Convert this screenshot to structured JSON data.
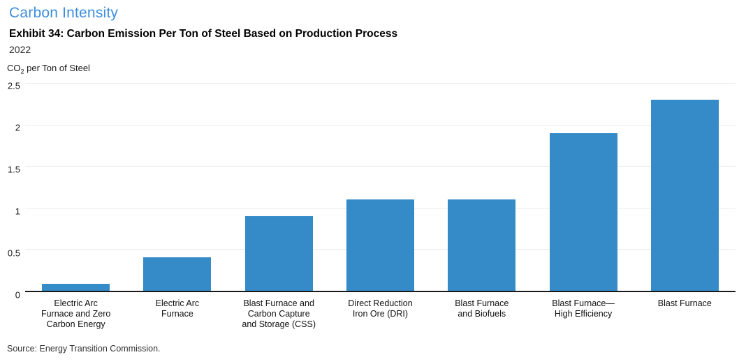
{
  "header": {
    "section_title": "Carbon Intensity",
    "exhibit_title": "Exhibit 34: Carbon Emission Per Ton of Steel Based on Production Process",
    "subtitle": "2022"
  },
  "y_axis_title": {
    "prefix": "CO",
    "sub": "2",
    "rest": " per Ton of Steel"
  },
  "footer": {
    "source": "Source: Energy Transition Commission."
  },
  "colors": {
    "section_title_blue": "#3e8ede",
    "bar_blue": "#348bc8",
    "gridline": "#ebebeb",
    "axis_line": "#1a1a1a"
  },
  "chart_data": {
    "type": "bar",
    "title": "Exhibit 34: Carbon Emission Per Ton of Steel Based on Production Process",
    "subtitle": "2022",
    "xlabel": "",
    "ylabel": "CO₂ per Ton of Steel",
    "ylim": [
      0,
      2.5
    ],
    "yticks": [
      0,
      0.5,
      1,
      1.5,
      2,
      2.5
    ],
    "grid": true,
    "legend": false,
    "bar_color": "#348bc8",
    "categories": [
      "Electric Arc Furnace and Zero Carbon Energy",
      "Electric Arc Furnace",
      "Blast Furnace and Carbon Capture and Storage (CSS)",
      "Direct Reduction Iron Ore (DRI)",
      "Blast Furnace and Biofuels",
      "Blast Furnace—High Efficiency",
      "Blast Furnace"
    ],
    "category_lines": [
      [
        "Electric Arc",
        "Furnace and Zero",
        "Carbon Energy"
      ],
      [
        "Electric Arc",
        "Furnace"
      ],
      [
        "Blast Furnace and",
        "Carbon Capture",
        "and Storage (CSS)"
      ],
      [
        "Direct Reduction",
        "Iron Ore (DRI)"
      ],
      [
        "Blast Furnace",
        "and Biofuels"
      ],
      [
        "Blast Furnace—",
        "High Efficiency"
      ],
      [
        "Blast Furnace"
      ]
    ],
    "values": [
      0.08,
      0.4,
      0.9,
      1.1,
      1.1,
      1.9,
      2.3
    ]
  }
}
